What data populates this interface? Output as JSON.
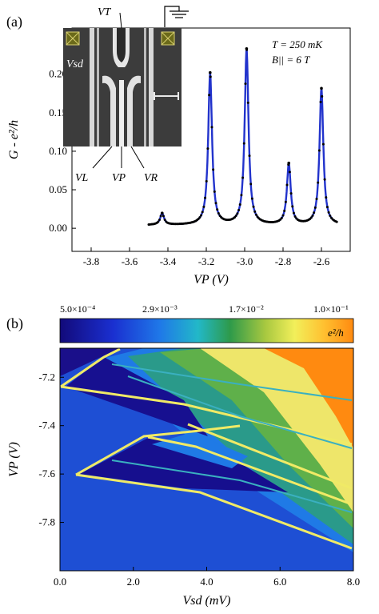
{
  "panel_a": {
    "label": "(a)",
    "temperature": "T = 250 mK",
    "field": "B|| = 6 T",
    "sem_labels": {
      "vt": "VT",
      "vsd": "Vsd",
      "vl": "VL",
      "vp": "VP",
      "vr": "VR"
    },
    "colors": {
      "fit": "#2233cc",
      "data": "#000000",
      "electrode": "#6b6a1a"
    }
  },
  "panel_b": {
    "label": "(b)",
    "colorbar": {
      "ticks": [
        "5.0×10⁻⁴",
        "2.9×10⁻³",
        "1.7×10⁻²",
        "1.0×10⁻¹"
      ],
      "unit": "e²/h"
    },
    "colors": {
      "low": "#1a0a8a",
      "mid_low": "#1e6fe0",
      "mid": "#2e9a4a",
      "mid_high": "#e8e84a",
      "high": "#ff8a10"
    }
  },
  "chart_data": [
    {
      "type": "line",
      "xlabel": "VP (V)",
      "ylabel": "G - e²/h",
      "xlim": [
        -3.9,
        -2.45
      ],
      "ylim": [
        -0.03,
        0.26
      ],
      "xticks": [
        -3.8,
        -3.6,
        -3.4,
        -3.2,
        -3.0,
        -2.8,
        -2.6
      ],
      "xtick_labels": [
        "-3.8",
        "-3.6",
        "-3.4",
        "-3.2",
        "-3.0",
        "-2.8",
        "-2.6"
      ],
      "yticks": [
        0.0,
        0.05,
        0.1,
        0.15,
        0.2
      ],
      "ytick_labels": [
        "0.00",
        "0.05",
        "0.10",
        "0.15",
        "0.20"
      ],
      "x_start": -3.5,
      "x_end": -2.52,
      "baseline": 0.004,
      "peaks": [
        {
          "x": -3.43,
          "height": 0.015
        },
        {
          "x": -3.18,
          "height": 0.197
        },
        {
          "x": -2.99,
          "height": 0.228
        },
        {
          "x": -2.77,
          "height": 0.079
        },
        {
          "x": -2.6,
          "height": 0.177
        }
      ],
      "grid": false
    },
    {
      "type": "heatmap",
      "xlabel": "Vsd (mV)",
      "ylabel": "VP (V)",
      "xlim": [
        0.0,
        8.0
      ],
      "ylim": [
        -8.0,
        -7.08
      ],
      "xticks": [
        0.0,
        2.0,
        4.0,
        6.0,
        8.0
      ],
      "xtick_labels": [
        "0.0",
        "2.0",
        "4.0",
        "6.0",
        "8.0"
      ],
      "yticks": [
        -7.2,
        -7.4,
        -7.6,
        -7.8
      ],
      "ytick_labels": [
        "-7.2",
        "-7.4",
        "-7.6",
        "-7.8"
      ],
      "colorbar_range": [
        "5.0×10⁻⁴",
        "1.0×10⁻¹"
      ],
      "diamond_tips": [
        {
          "vsd": 0.05,
          "vp": -7.22
        },
        {
          "vsd": 0.7,
          "vp": -7.61
        }
      ],
      "grid": false
    }
  ]
}
